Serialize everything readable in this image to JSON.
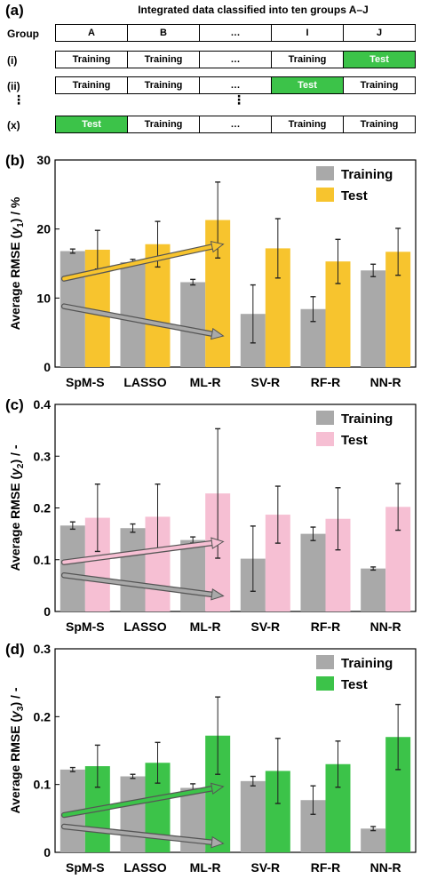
{
  "scheme": {
    "panel_label": "(a)",
    "title": "Integrated data classified into ten groups A–J",
    "group_label": "Group",
    "groups": [
      "A",
      "B",
      "…",
      "I",
      "J"
    ],
    "rows": [
      {
        "label": "(i)",
        "cells": [
          "Training",
          "Training",
          "…",
          "Training",
          "Test"
        ]
      },
      {
        "label": "(ii)",
        "cells": [
          "Training",
          "Training",
          "…",
          "Test",
          "Training"
        ]
      },
      {
        "label": "(x)",
        "cells": [
          "Test",
          "Training",
          "…",
          "Training",
          "Training"
        ]
      }
    ],
    "ellipsis_vertical": "⋮",
    "test_color": "#3cc349"
  },
  "chart_data": [
    {
      "type": "bar",
      "panel_label": "(b)",
      "categories": [
        "SpM-S",
        "LASSO",
        "ML-R",
        "SV-R",
        "RF-R",
        "NN-R"
      ],
      "ylabel_prefix": "Average RMSE (",
      "ylabel_var": "y",
      "ylabel_sub": "1",
      "ylabel_suffix": ") / %",
      "ylim": [
        0,
        30
      ],
      "yticks": [
        "0",
        "10",
        "20",
        "30"
      ],
      "ytick_values": [
        0,
        10,
        20,
        30
      ],
      "legend_position": "top-right",
      "series": [
        {
          "name": "Training",
          "color": "#a9a9a9",
          "values": [
            16.8,
            15.2,
            12.3,
            7.7,
            8.4,
            14.0
          ],
          "errors": [
            0.3,
            0.4,
            0.4,
            4.2,
            1.8,
            0.9
          ]
        },
        {
          "name": "Test",
          "color": "#f7c42e",
          "values": [
            17.0,
            17.8,
            21.3,
            17.2,
            15.3,
            16.7
          ],
          "errors": [
            2.8,
            3.3,
            5.5,
            4.3,
            3.2,
            3.4
          ]
        }
      ],
      "arrows": [
        {
          "color": "#a9a9a9",
          "from": [
            -0.35,
            8.8
          ],
          "to": [
            2.3,
            4.5
          ]
        },
        {
          "color": "#f7c42e",
          "from": [
            -0.35,
            12.8
          ],
          "to": [
            2.3,
            17.8
          ]
        }
      ]
    },
    {
      "type": "bar",
      "panel_label": "(c)",
      "categories": [
        "SpM-S",
        "LASSO",
        "ML-R",
        "SV-R",
        "RF-R",
        "NN-R"
      ],
      "ylabel_prefix": "Average RMSE (",
      "ylabel_var": "y",
      "ylabel_sub": "2",
      "ylabel_suffix": ") / -",
      "ylim": [
        0,
        0.4
      ],
      "yticks": [
        "0",
        "0.1",
        "0.2",
        "0.3",
        "0.4"
      ],
      "ytick_values": [
        0,
        0.1,
        0.2,
        0.3,
        0.4
      ],
      "legend_position": "top-right",
      "series": [
        {
          "name": "Training",
          "color": "#a9a9a9",
          "values": [
            0.166,
            0.161,
            0.138,
            0.102,
            0.15,
            0.083
          ],
          "errors": [
            0.007,
            0.008,
            0.006,
            0.063,
            0.013,
            0.003
          ]
        },
        {
          "name": "Test",
          "color": "#f6bfd3",
          "values": [
            0.181,
            0.183,
            0.228,
            0.187,
            0.179,
            0.202
          ],
          "errors": [
            0.065,
            0.063,
            0.125,
            0.055,
            0.06,
            0.045
          ]
        }
      ],
      "arrows": [
        {
          "color": "#a9a9a9",
          "from": [
            -0.35,
            0.07
          ],
          "to": [
            2.3,
            0.03
          ]
        },
        {
          "color": "#f6bfd3",
          "from": [
            -0.35,
            0.095
          ],
          "to": [
            2.3,
            0.135
          ]
        }
      ]
    },
    {
      "type": "bar",
      "panel_label": "(d)",
      "categories": [
        "SpM-S",
        "LASSO",
        "ML-R",
        "SV-R",
        "RF-R",
        "NN-R"
      ],
      "ylabel_prefix": "Average RMSE (",
      "ylabel_var": "y",
      "ylabel_sub": "3",
      "ylabel_suffix": ") / -",
      "ylim": [
        0,
        0.3
      ],
      "yticks": [
        "0",
        "0.1",
        "0.2",
        "0.3"
      ],
      "ytick_values": [
        0,
        0.1,
        0.2,
        0.3
      ],
      "legend_position": "top-right",
      "series": [
        {
          "name": "Training",
          "color": "#a9a9a9",
          "values": [
            0.122,
            0.112,
            0.095,
            0.105,
            0.077,
            0.035
          ],
          "errors": [
            0.003,
            0.003,
            0.006,
            0.007,
            0.021,
            0.003
          ]
        },
        {
          "name": "Test",
          "color": "#3cc349",
          "values": [
            0.127,
            0.132,
            0.172,
            0.12,
            0.13,
            0.17
          ],
          "errors": [
            0.031,
            0.03,
            0.057,
            0.048,
            0.034,
            0.048
          ]
        }
      ],
      "arrows": [
        {
          "color": "#a9a9a9",
          "from": [
            -0.35,
            0.038
          ],
          "to": [
            2.3,
            0.013
          ]
        },
        {
          "color": "#3cc349",
          "from": [
            -0.35,
            0.055
          ],
          "to": [
            2.3,
            0.097
          ]
        }
      ]
    }
  ]
}
